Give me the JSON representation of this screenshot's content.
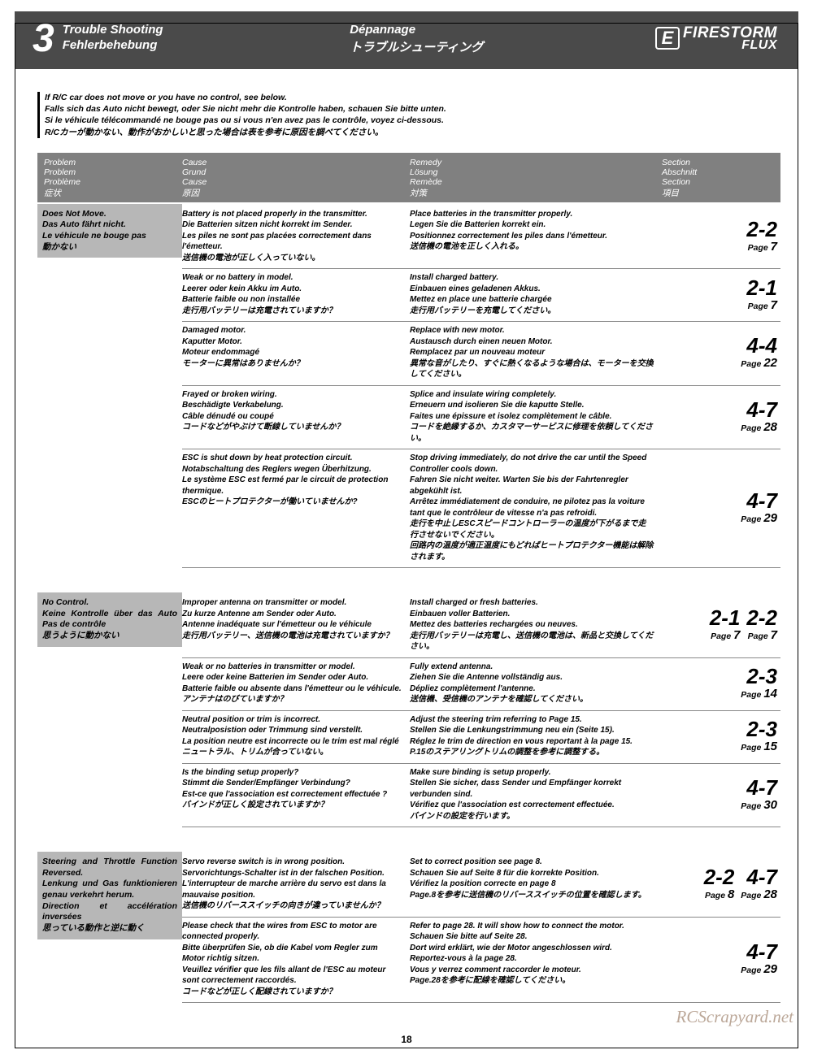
{
  "header": {
    "number": "3",
    "titles": [
      "Trouble Shooting",
      "Dépannage",
      "Fehlerbehebung",
      "トラブルシューティング"
    ],
    "logo_e": "E",
    "logo_main": "FIRESTORM",
    "logo_sub": "FLUX"
  },
  "intro": [
    "If R/C car does not move or you have no control, see below.",
    "Falls sich das Auto nicht bewegt, oder Sie nicht mehr die Kontrolle haben, schauen Sie bitte unten.",
    "Si le véhicule télécommandé ne bouge pas ou si vous n'en avez pas le contrôle, voyez ci-dessous.",
    "R/Cカーが動かない、動作がおかしいと思った場合は表を参考に原因を調べてください。"
  ],
  "columns": {
    "problem": [
      "Problem",
      "Problem",
      "Problème",
      "症状"
    ],
    "cause": [
      "Cause",
      "Grund",
      "Cause",
      "原因"
    ],
    "remedy": [
      "Remedy",
      "Lösung",
      "Remède",
      "対策"
    ],
    "section": [
      "Section",
      "Abschnitt",
      "Section",
      "項目"
    ]
  },
  "groups": [
    {
      "problem": "Does Not Move.\nDas Auto fährt nicht.\nLe véhicule ne bouge pas\n動かない",
      "rows": [
        {
          "cause": "Battery is not placed properly in the transmitter.\nDie Batterien sitzen nicht korrekt im Sender.\nLes piles ne sont pas placées correctement dans l'émetteur.\n送信機の電池が正しく入っていない。",
          "remedy": "Place batteries in the transmitter properly.\nLegen Sie die Batterien korrekt ein.\nPositionnez correctement les piles dans l'émetteur.\n送信機の電池を正しく入れる。",
          "sections": [
            {
              "num": "2-2",
              "page": "7"
            }
          ]
        },
        {
          "cause": "Weak or no battery in model.\nLeerer oder kein Akku im Auto.\nBatterie faible ou non installée\n走行用バッテリーは充電されていますか？",
          "remedy": "Install charged battery.\nEinbauen eines geladenen Akkus.\nMettez en place une batterie chargée\n走行用バッテリーを充電してください。",
          "sections": [
            {
              "num": "2-1",
              "page": "7"
            }
          ]
        },
        {
          "cause": "Damaged motor.\nKaputter Motor.\nMoteur endommagé\nモーターに異常はありませんか？",
          "remedy": "Replace with new motor.\nAustausch durch einen neuen Motor.\nRemplacez par un nouveau moteur\n異常な音がしたり、すぐに熱くなるような場合は、モーターを交換してください。",
          "sections": [
            {
              "num": "4-4",
              "page": "22"
            }
          ]
        },
        {
          "cause": "Frayed or broken wiring.\nBeschädigte Verkabelung.\nCâble dénudé ou coupé\nコードなどがやぶけて断線していませんか？",
          "remedy": "Splice and insulate wiring completely.\nErneuern und isolieren Sie die kaputte Stelle.\nFaites une épissure et isolez complètement le câble.\nコードを絶縁するか、カスタマーサービスに修理を依頼してください。",
          "sections": [
            {
              "num": "4-7",
              "page": "28"
            }
          ]
        },
        {
          "cause": "ESC is shut down by heat protection circuit.\nNotabschaltung des Reglers wegen Überhitzung.\nLe système ESC est fermé par le circuit de protection thermique.\nESCのヒートプロテクターが働いていませんか?",
          "remedy": "Stop driving immediately, do not drive the car until the Speed Controller cools down.\nFahren Sie nicht weiter. Warten Sie bis der Fahrtenregler abgekühlt ist.\nArrêtez immédiatement de conduire, ne pilotez pas la voiture tant que le contrôleur de vitesse n'a pas refroidi.\n走行を中止しESCスピードコントローラーの温度が下がるまで走行させないでください。\n回路内の温度が適正温度にもどればヒートプロテクター機能は解除されます。",
          "sections": [
            {
              "num": "4-7",
              "page": "29"
            }
          ]
        }
      ]
    },
    {
      "problem": "No Control.\nKeine Kontrolle über das Auto Pas de contrôle\n思うように動かない",
      "rows": [
        {
          "cause": "Improper antenna on transmitter or model.\nZu kurze Antenne am Sender oder Auto.\nAntenne inadéquate sur l'émetteur ou le véhicule\n走行用バッテリー、送信機の電池は充電されていますか？",
          "remedy": "Install charged or fresh batteries.\nEinbauen voller Batterien.\nMettez des batteries rechargées ou neuves.\n走行用バッテリーは充電し、送信機の電池は、新品と交換してください。",
          "sections": [
            {
              "num": "2-1",
              "page": "7"
            },
            {
              "num": "2-2",
              "page": "7"
            }
          ]
        },
        {
          "cause": "Weak or no batteries in transmitter or model.\nLeere oder keine Batterien im Sender oder Auto.\nBatterie faible ou absente dans l'émetteur ou le véhicule.\nアンテナはのびていますか？",
          "remedy": "Fully extend antenna.\nZiehen Sie die Antenne vollständig aus.\nDépliez complètement l'antenne.\n送信機、受信機のアンテナを確認してください。",
          "sections": [
            {
              "num": "2-3",
              "page": "14"
            }
          ]
        },
        {
          "cause": "Neutral position or trim is incorrect.\nNeutralposistion oder Trimmung sind verstellt.\nLa position neutre est incorrecte ou le trim est mal réglé\nニュートラル、トリムが合っていない。",
          "remedy": "Adjust the steering trim referring to Page 15.\nStellen Sie die Lenkungstrimmung neu ein (Seite 15).\nRéglez le trim de direction en vous reportant à la page 15.\nP.15のステアリングトリムの調整を参考に調整する。",
          "sections": [
            {
              "num": "2-3",
              "page": "15"
            }
          ]
        },
        {
          "cause": "Is the binding setup properly?\nStimmt die Sender/Empfänger Verbindung?\nEst-ce que l'association est correctement effectuée ?\nバインドが正しく設定されていますか？",
          "remedy": "Make sure binding is setup properly.\nStellen Sie sicher, dass Sender und Empfänger korrekt verbunden sind.\nVérifiez que l'association est correctement effectuée.\nバインドの設定を行います。",
          "sections": [
            {
              "num": "4-7",
              "page": "30"
            }
          ]
        }
      ]
    },
    {
      "problem": "Steering and Throttle Function Reversed.\nLenkung und Gas funktionieren genau verkehrt herum.\nDirection et accélération inversées\n思っている動作と逆に動く",
      "rows": [
        {
          "cause": "Servo reverse switch is in wrong position.\nServorichtungs-Schalter ist in der falschen Position.\nL'interrupteur de marche arrière du servo est dans la mauvaise position.\n送信機のリバーススイッチの向きが違っていませんか？",
          "remedy": "Set to correct position see page 8.\nSchauen Sie auf Seite 8 für die korrekte Position.\nVérifiez la position correcte en page 8\nPage.8を参考に送信機のリバーススイッチの位置を確認します。",
          "sections": [
            {
              "num": "2-2",
              "page": "8"
            },
            {
              "num": "4-7",
              "page": "28"
            }
          ]
        },
        {
          "cause": "Please check that the wires from ESC to motor are connected properly.\nBitte überprüfen Sie, ob die Kabel vom Regler zum Motor richtig sitzen.\nVeuillez vérifier que les fils allant de l'ESC au moteur sont correctement raccordés.\nコードなどが正しく配線されていますか？",
          "remedy": "Refer to page 28. It will show how to connect the motor.\nSchauen Sie bitte auf Seite 28.\nDort wird erklärt, wie der Motor angeschlossen wird.\nReportez-vous à la page 28.\nVous y verrez comment raccorder le moteur.\nPage.28を参考に配線を確認してください。",
          "sections": [
            {
              "num": "4-7",
              "page": "29"
            }
          ]
        }
      ]
    }
  ],
  "page_label": "Page",
  "watermark": "RCScrapyard.net",
  "page_number": "18",
  "colors": {
    "header_bg": "#4a4a4a",
    "thead_bg": "#808080",
    "problem_bg": "#b7b7b7"
  }
}
